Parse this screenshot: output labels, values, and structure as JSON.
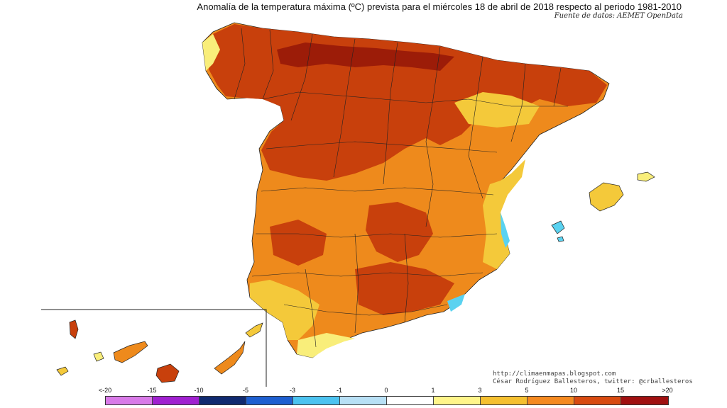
{
  "header": {
    "title": "Anomalía de la temperatura máxima (ºC) prevista para el miércoles 18 de abril de 2018 respecto al periodo 1981-2010",
    "source": "Fuente de datos: AEMET OpenData"
  },
  "credits": {
    "line1": "http://climaenmapas.blogspot.com",
    "line2": "César Rodríguez Ballesteros, twitter: @crballesteros"
  },
  "legend": {
    "ticks": [
      "<-20",
      "-15",
      "-10",
      "-5",
      "-3",
      "-1",
      "0",
      "1",
      "3",
      "5",
      "10",
      "15",
      ">20"
    ],
    "colors": [
      "#d97ae8",
      "#a020d0",
      "#102a70",
      "#1e5fd0",
      "#4cc3f0",
      "#b8e0f5",
      "#ffffff",
      "#fff58a",
      "#f5c030",
      "#f58a20",
      "#d84a10",
      "#a01010",
      "#7a4010"
    ]
  },
  "map_colors": {
    "land_dark_red": "#c8400c",
    "land_deep_red": "#9c1c08",
    "land_orange": "#ee8a1c",
    "land_yellow": "#f4c93a",
    "land_pale": "#f9ee7a",
    "coast_cyan": "#5ad2f0"
  }
}
